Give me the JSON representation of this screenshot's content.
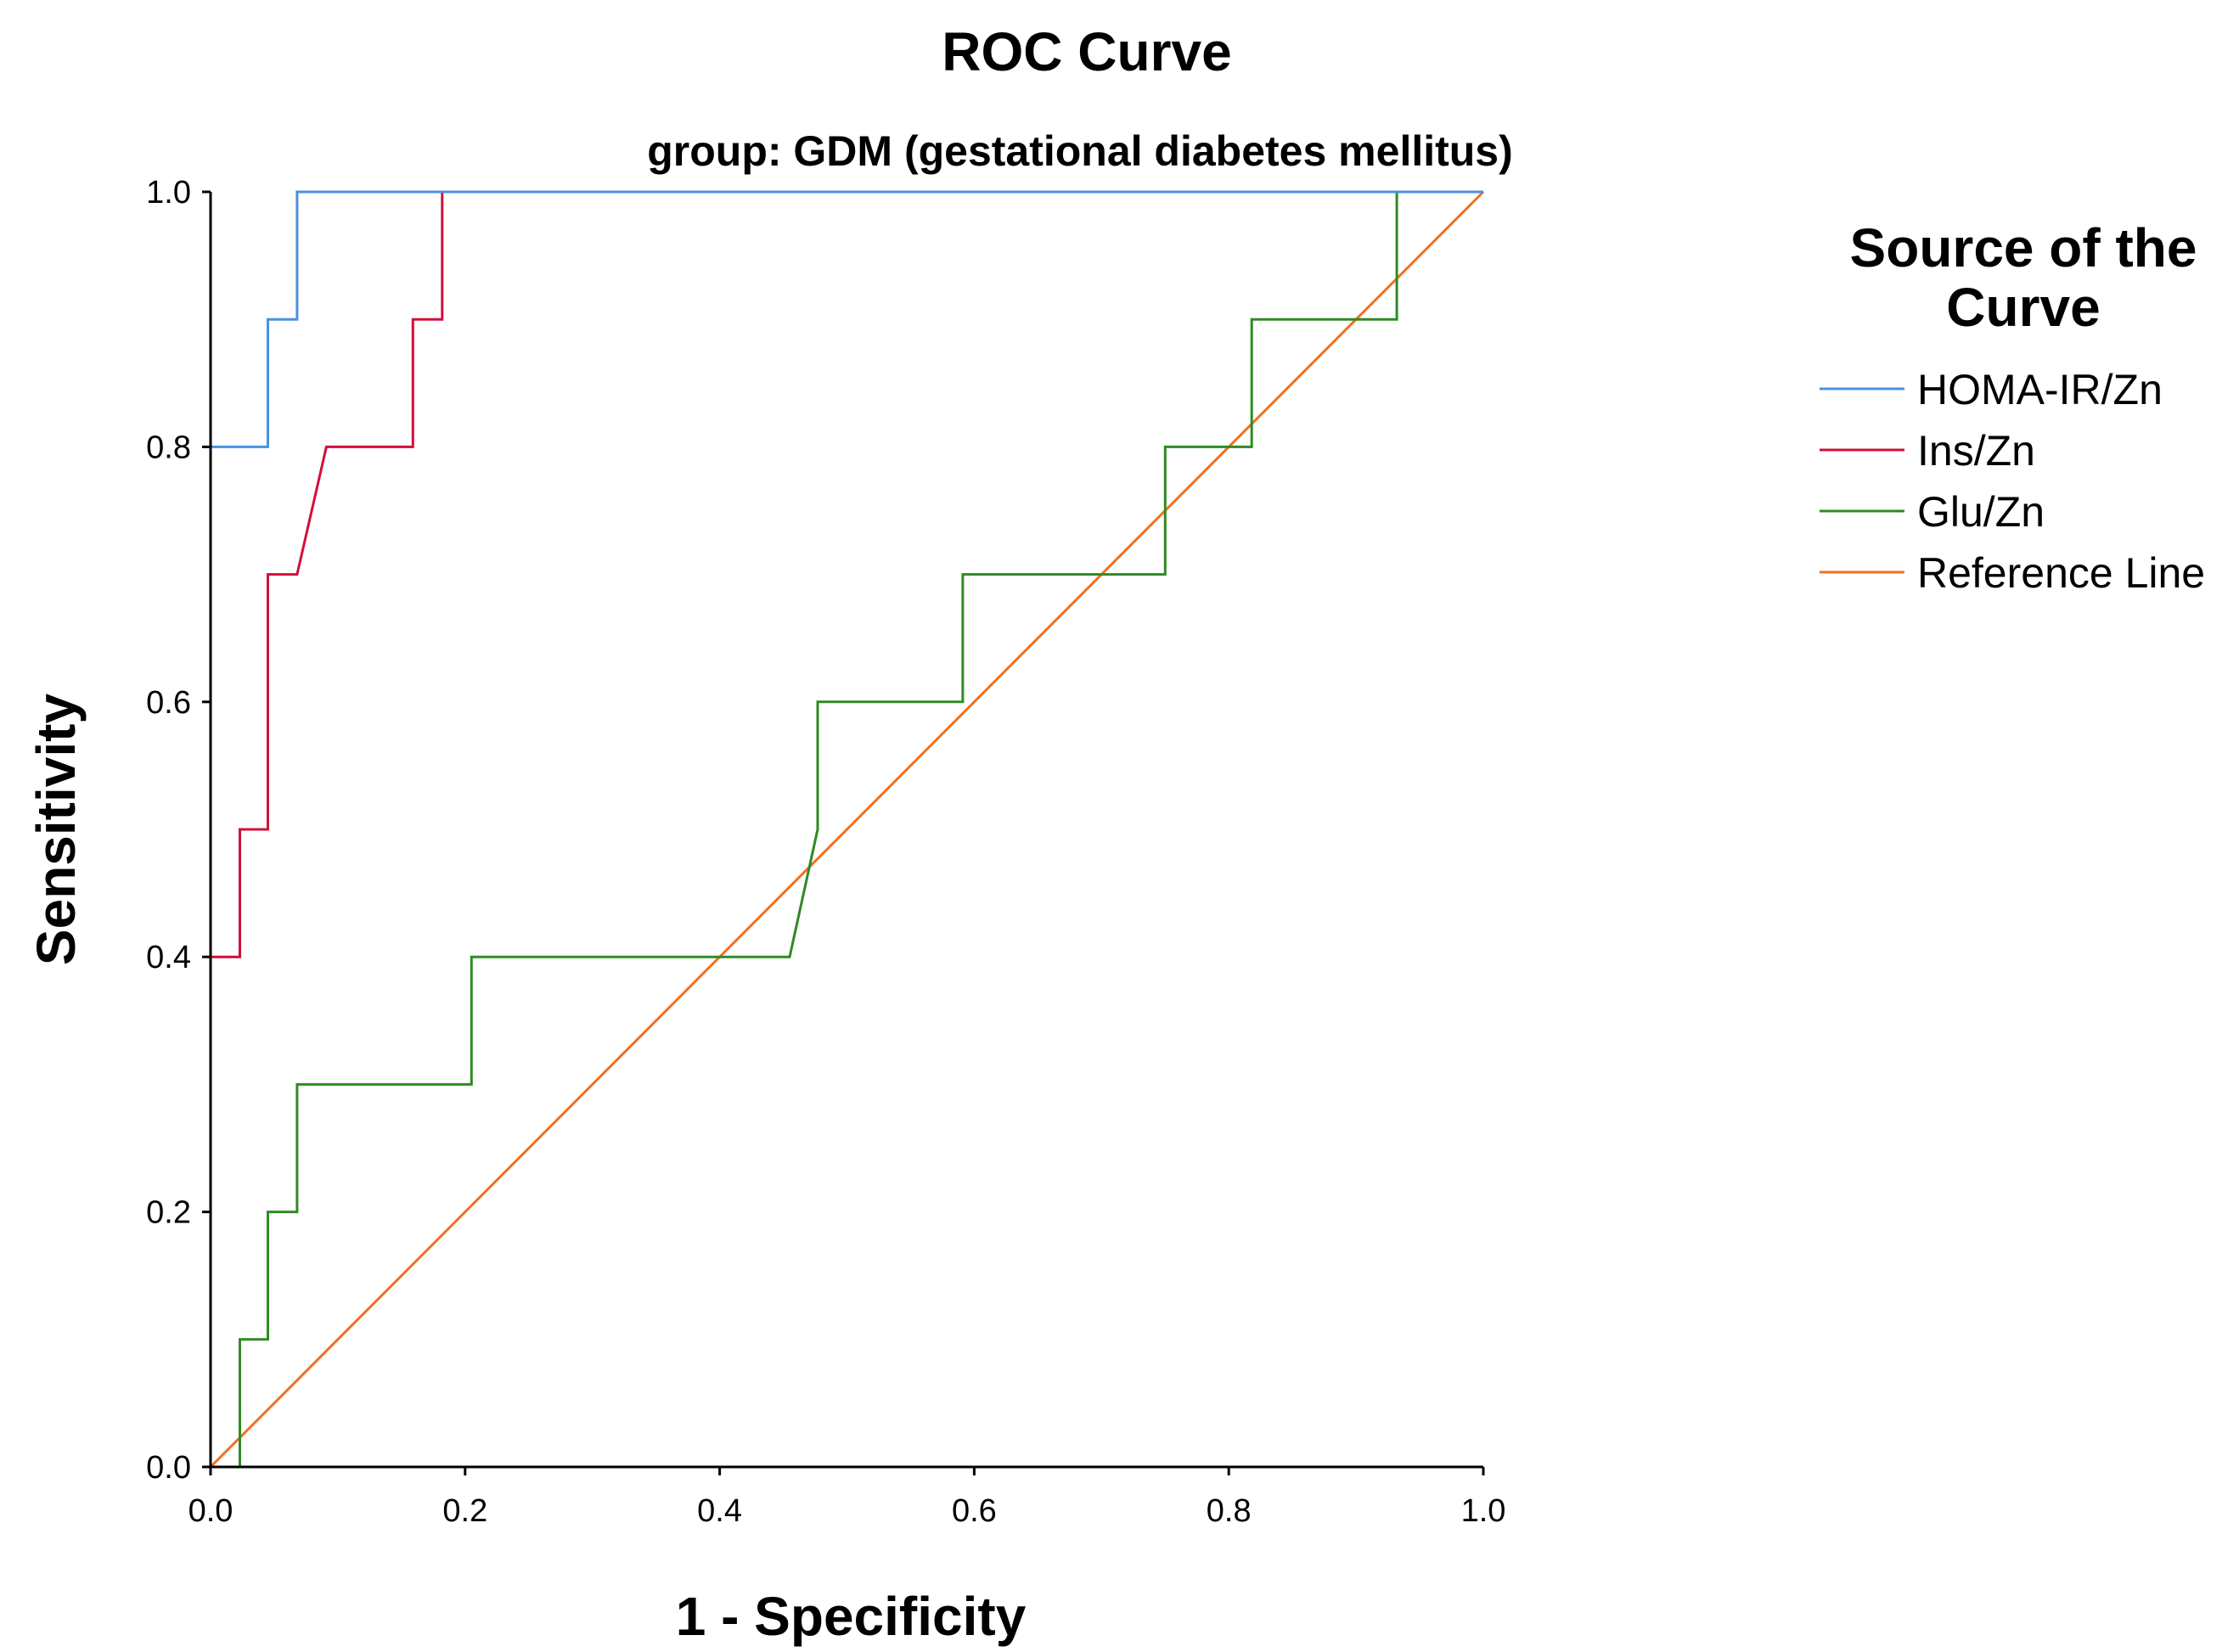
{
  "chart_data": {
    "type": "line",
    "title": "ROC Curve",
    "subtitle": "group: GDM (gestational diabetes mellitus)",
    "xlabel": "1 - Specificity",
    "ylabel": "Sensitivity",
    "xlim": [
      0,
      1
    ],
    "ylim": [
      0,
      1
    ],
    "x_ticks": [
      "0.0",
      "0.2",
      "0.4",
      "0.6",
      "0.8",
      "1.0"
    ],
    "y_ticks": [
      "0.0",
      "0.2",
      "0.4",
      "0.6",
      "0.8",
      "1.0"
    ],
    "grid": false,
    "legend": {
      "title_line1": "Source of the",
      "title_line2": "Curve",
      "placement": "right"
    },
    "series": [
      {
        "name": "HOMA-IR/Zn",
        "color": "#4a90e2",
        "points": [
          [
            0,
            0
          ],
          [
            0,
            0.4
          ],
          [
            0,
            0.8
          ],
          [
            0.045,
            0.8
          ],
          [
            0.045,
            0.9
          ],
          [
            0.068,
            0.9
          ],
          [
            0.068,
            1.0
          ],
          [
            1.0,
            1.0
          ]
        ]
      },
      {
        "name": "Ins/Zn",
        "color": "#d0103a",
        "points": [
          [
            0,
            0
          ],
          [
            0,
            0.4
          ],
          [
            0.023,
            0.4
          ],
          [
            0.023,
            0.5
          ],
          [
            0.045,
            0.5
          ],
          [
            0.045,
            0.7
          ],
          [
            0.068,
            0.7
          ],
          [
            0.091,
            0.8
          ],
          [
            0.159,
            0.8
          ],
          [
            0.159,
            0.9
          ],
          [
            0.182,
            0.9
          ],
          [
            0.182,
            1.0
          ],
          [
            1.0,
            1.0
          ]
        ]
      },
      {
        "name": "Glu/Zn",
        "color": "#2e8b22",
        "points": [
          [
            0,
            0
          ],
          [
            0.023,
            0
          ],
          [
            0.023,
            0.1
          ],
          [
            0.045,
            0.1
          ],
          [
            0.045,
            0.2
          ],
          [
            0.068,
            0.2
          ],
          [
            0.068,
            0.3
          ],
          [
            0.205,
            0.3
          ],
          [
            0.205,
            0.4
          ],
          [
            0.455,
            0.4
          ],
          [
            0.477,
            0.5
          ],
          [
            0.477,
            0.6
          ],
          [
            0.591,
            0.6
          ],
          [
            0.591,
            0.7
          ],
          [
            0.75,
            0.7
          ],
          [
            0.75,
            0.8
          ],
          [
            0.818,
            0.8
          ],
          [
            0.818,
            0.9
          ],
          [
            0.932,
            0.9
          ],
          [
            0.932,
            1.0
          ],
          [
            1.0,
            1.0
          ]
        ]
      },
      {
        "name": "Reference Line",
        "color": "#f07020",
        "points": [
          [
            0,
            0
          ],
          [
            1,
            1
          ]
        ]
      }
    ]
  }
}
